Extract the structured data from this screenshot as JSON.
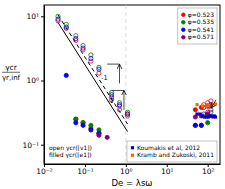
{
  "chart_data": {
    "type": "scatter",
    "xlabel": "De = λsω",
    "ylabel": [
      "γcr",
      "γr,inf"
    ],
    "log": true,
    "grid": false,
    "xlim": [
      0.01,
      200
    ],
    "ylim": [
      0.05,
      15
    ],
    "xticks": [
      {
        "value": 0.01,
        "label": "10⁻²"
      },
      {
        "value": 0.1,
        "label": "10⁻¹"
      },
      {
        "value": 1,
        "label": "10⁰"
      },
      {
        "value": 10,
        "label": "10¹"
      },
      {
        "value": 100,
        "label": "10²"
      }
    ],
    "yticks": [
      {
        "value": 0.1,
        "label": "10⁻¹"
      },
      {
        "value": 1,
        "label": "10⁰"
      },
      {
        "value": 10,
        "label": "10¹"
      }
    ],
    "series": [
      {
        "type": "scatter",
        "marker": "open-circle",
        "color": "#FF0000",
        "x": [
          0.022,
          0.035,
          0.06,
          0.09,
          0.14,
          0.22,
          0.45,
          0.7,
          1.1
        ],
        "values": [
          8.5,
          6.5,
          4.2,
          3.0,
          2.0,
          1.3,
          0.5,
          0.35,
          0.28
        ]
      },
      {
        "type": "scatter",
        "marker": "open-circle",
        "color": "#008000",
        "x": [
          0.022,
          0.035,
          0.06,
          0.09,
          0.14,
          0.22,
          0.45,
          0.7,
          1.1
        ],
        "values": [
          10.0,
          7.5,
          5.0,
          3.5,
          2.5,
          1.6,
          0.65,
          0.45,
          0.32
        ]
      },
      {
        "type": "scatter",
        "marker": "open-circle",
        "color": "#0000FF",
        "x": [
          0.022,
          0.035,
          0.06,
          0.09,
          0.14,
          0.22,
          0.45,
          0.7,
          1.1
        ],
        "values": [
          9.0,
          6.8,
          4.5,
          3.2,
          2.2,
          1.5,
          0.6,
          0.42,
          0.3
        ]
      },
      {
        "type": "scatter",
        "marker": "open-circle",
        "color": "#800080",
        "x": [
          0.45,
          0.7,
          1.1
        ],
        "values": [
          0.55,
          0.4,
          0.3
        ]
      },
      {
        "type": "scatter",
        "marker": "open-circle",
        "color": "#FF0000",
        "x": [
          80,
          100,
          120
        ],
        "values": [
          0.42,
          0.45,
          0.48
        ]
      },
      {
        "type": "scatter",
        "marker": "open-circle",
        "color": "#008000",
        "x": [
          80,
          100,
          120
        ],
        "values": [
          0.28,
          0.3,
          0.32
        ]
      },
      {
        "type": "scatter",
        "marker": "open-circle",
        "color": "#0000FF",
        "x": [
          80,
          100,
          120
        ],
        "values": [
          0.38,
          0.4,
          0.42
        ]
      },
      {
        "type": "scatter",
        "marker": "open-circle",
        "color": "#800080",
        "x": [
          80,
          100,
          120
        ],
        "values": [
          0.3,
          0.32,
          0.35
        ]
      },
      {
        "type": "scatter",
        "marker": "circle",
        "color": "#FF0000",
        "x": [
          0.06,
          0.09,
          0.14,
          0.22,
          50,
          70,
          100
        ],
        "values": [
          0.25,
          0.22,
          0.18,
          0.15,
          0.35,
          0.38,
          0.4
        ]
      },
      {
        "type": "scatter",
        "marker": "circle",
        "color": "#008000",
        "x": [
          0.06,
          0.09,
          0.14,
          0.22,
          50,
          70,
          100
        ],
        "values": [
          0.25,
          0.22,
          0.2,
          0.17,
          0.2,
          0.2,
          0.22
        ]
      },
      {
        "type": "scatter",
        "marker": "circle",
        "color": "#0000FF",
        "x": [
          0.035,
          0.06,
          0.09,
          0.14,
          0.22,
          50,
          70
        ],
        "values": [
          1.2,
          0.22,
          0.2,
          0.17,
          0.15,
          0.2,
          0.2
        ]
      },
      {
        "type": "scatter",
        "marker": "circle",
        "color": "#800080",
        "x": [
          0.22,
          0.35,
          50,
          70,
          100
        ],
        "values": [
          0.14,
          0.13,
          0.27,
          0.28,
          0.3
        ]
      },
      {
        "type": "scatter",
        "marker": "square",
        "color": "#0000CC",
        "x": [
          55,
          65,
          75,
          85,
          95,
          105,
          115,
          125,
          135,
          145,
          155
        ],
        "values": [
          0.3,
          0.3,
          0.28,
          0.27,
          0.27,
          0.27,
          0.28,
          0.28,
          0.27,
          0.28,
          0.27
        ]
      },
      {
        "type": "scatter",
        "marker": "square",
        "color": "#FF6600",
        "x": [
          55,
          75,
          95,
          110,
          125,
          155
        ],
        "values": [
          0.42,
          0.4,
          0.4,
          0.41,
          0.42,
          0.43
        ]
      },
      {
        "type": "line",
        "line_style": "solid",
        "color": "#000000",
        "x": [
          0.022,
          1.1
        ],
        "values": [
          8.0,
          0.16
        ]
      },
      {
        "type": "line",
        "line_style": "dashed",
        "color": "#000000",
        "x": [
          0.022,
          1.1
        ],
        "values": [
          10.5,
          0.21
        ]
      }
    ],
    "vlines": [
      {
        "x": 1.0,
        "color": "#D3D3D3",
        "line_style": "dashed"
      }
    ],
    "arrows": [
      {
        "x": [
          160,
          120
        ],
        "y": [
          0.5,
          0.37
        ]
      }
    ],
    "brackets": [
      {
        "x": [
          0.35,
          0.7
        ],
        "y_horiz": 1.8,
        "y_vert_end": 0.9
      },
      {
        "x": [
          0.45,
          0.9
        ],
        "y_horiz": 0.7,
        "y_vert_end": 0.35
      }
    ],
    "annotations": [
      {
        "text": "-1",
        "x": 0.25,
        "y": 1.0
      },
      {
        "text": "-1",
        "x": 0.35,
        "y": 0.45
      }
    ],
    "legends": [
      {
        "legend": "upper right",
        "entries": [
          {
            "label": "φ=0.523",
            "color": "#FF0000",
            "marker": "circle"
          },
          {
            "label": "φ=0.535",
            "color": "#008000",
            "marker": "circle"
          },
          {
            "label": "φ=0.541",
            "color": "#0000FF",
            "marker": "circle"
          },
          {
            "label": "φ=0.571",
            "color": "#800080",
            "marker": "circle"
          }
        ]
      },
      {
        "legend": "lower left",
        "entries": [
          {
            "label": "open γcr([v1])"
          },
          {
            "label": "filled γcr([e1])"
          }
        ]
      },
      {
        "legend": "lower right",
        "entries": [
          {
            "label": "Koumakis et al, 2012",
            "color": "#0000CC",
            "marker": "square"
          },
          {
            "label": "Kramb and Zukoski, 2011",
            "color": "#FF6600",
            "marker": "square"
          }
        ]
      }
    ]
  }
}
